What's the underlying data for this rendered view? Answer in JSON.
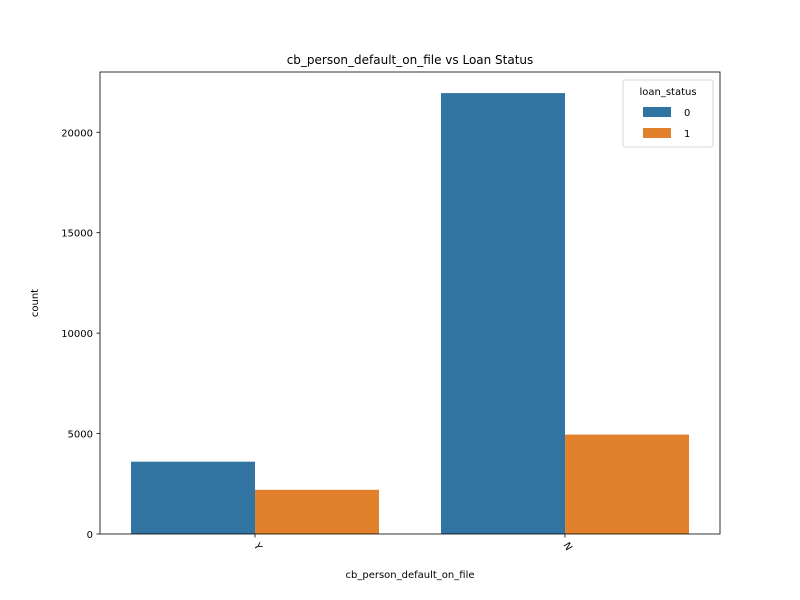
{
  "chart_data": {
    "type": "bar",
    "title": "cb_person_default_on_file vs Loan Status",
    "xlabel": "cb_person_default_on_file",
    "ylabel": "count",
    "categories": [
      "Y",
      "N"
    ],
    "series": [
      {
        "name": "0",
        "values": [
          3600,
          21950
        ],
        "color": "#3274a1"
      },
      {
        "name": "1",
        "values": [
          2200,
          4950
        ],
        "color": "#e1812c"
      }
    ],
    "ylim": [
      0,
      23000
    ],
    "yticks": [
      0,
      5000,
      10000,
      15000,
      20000
    ],
    "legend": {
      "title": "loan_status",
      "position": "top-right"
    },
    "grid": false
  }
}
